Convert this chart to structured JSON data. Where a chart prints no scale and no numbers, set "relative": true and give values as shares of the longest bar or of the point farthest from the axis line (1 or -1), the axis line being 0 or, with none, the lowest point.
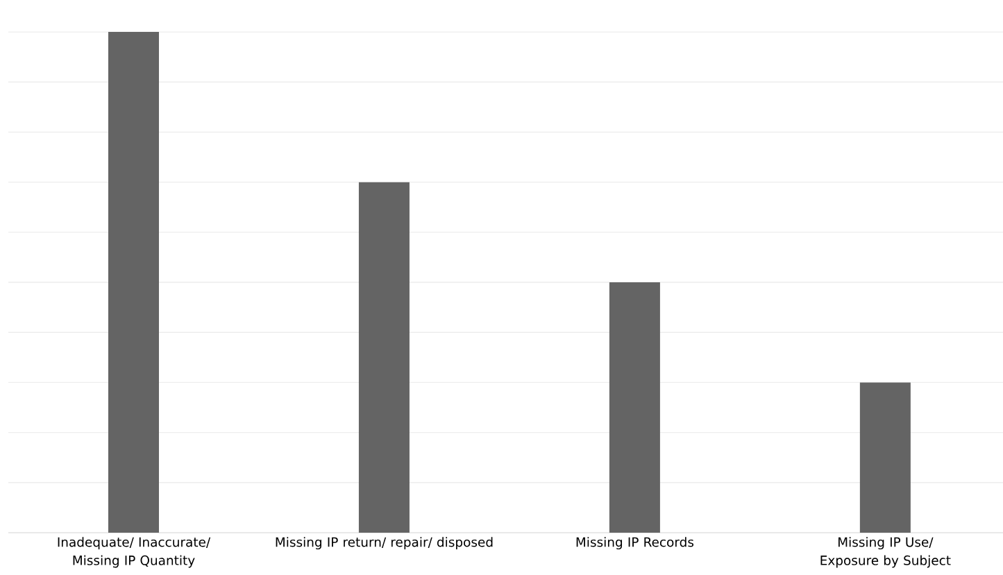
{
  "chart_data": {
    "type": "bar",
    "relative": true,
    "categories": [
      "Inadequate/ Inaccurate/ Missing IP Quantity",
      "Missing IP return/ repair/ disposed",
      "Missing IP Records",
      "Missing IP Use/ Exposure by Subject"
    ],
    "values": [
      1,
      0.7,
      0.5,
      0.3
    ],
    "color": "#646464",
    "grid": "y",
    "tick_labels": "x"
  }
}
